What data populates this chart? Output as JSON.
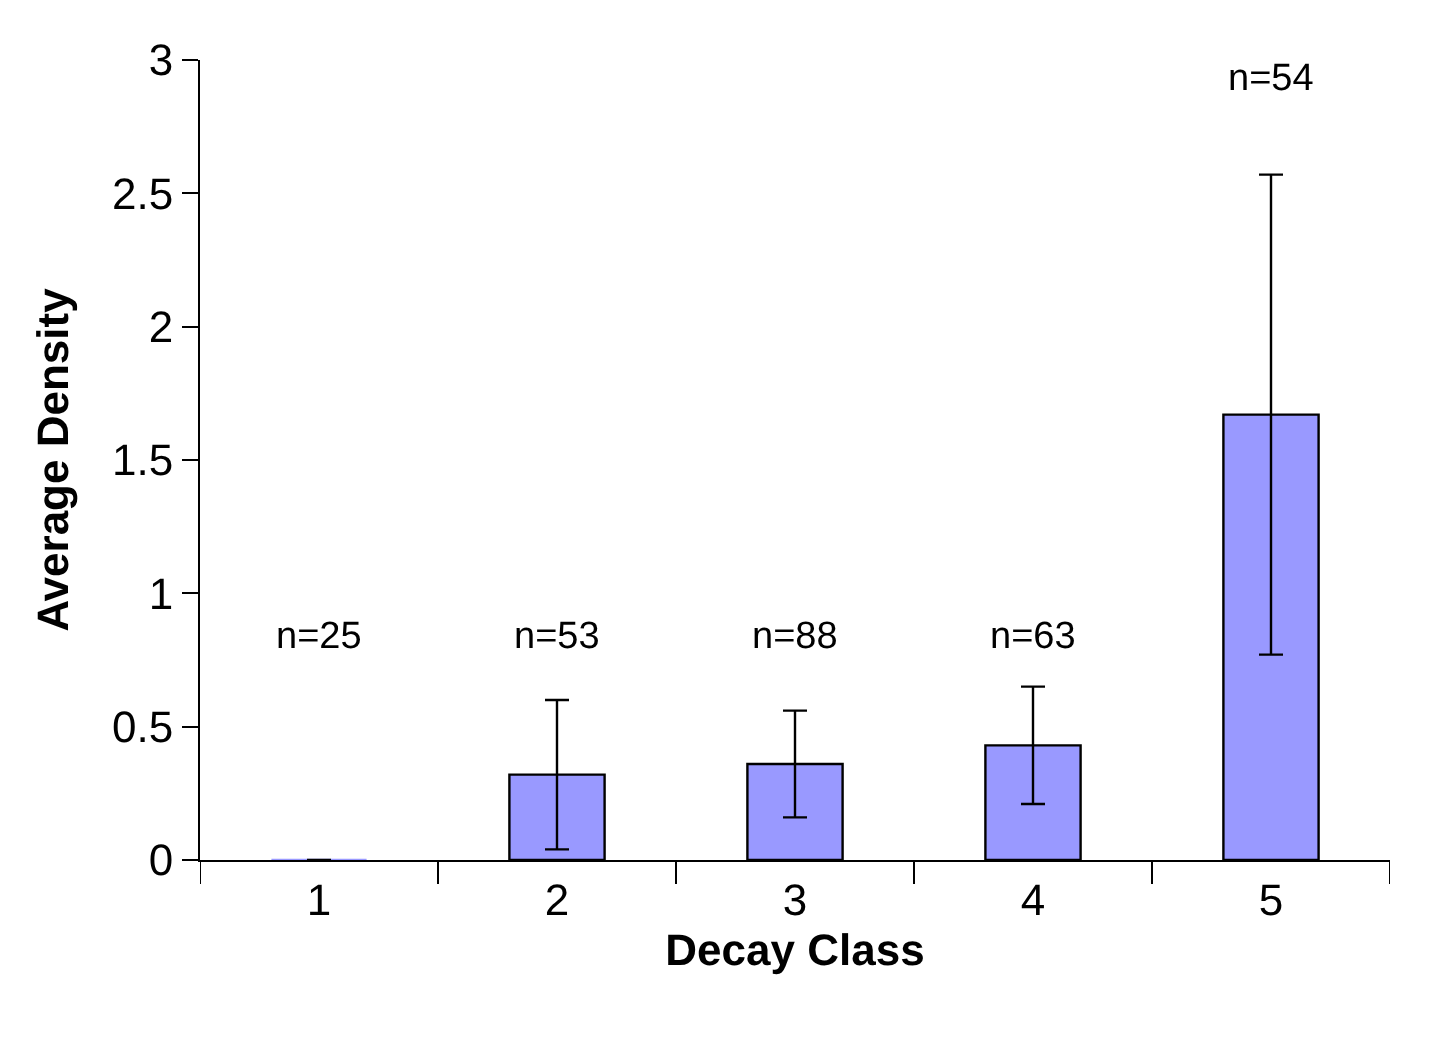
{
  "chart_data": {
    "type": "bar",
    "xlabel": "Decay Class",
    "ylabel": "Average Density",
    "categories": [
      "1",
      "2",
      "3",
      "4",
      "5"
    ],
    "values": [
      0,
      0.32,
      0.36,
      0.43,
      1.67
    ],
    "errors": [
      null,
      0.28,
      0.2,
      0.22,
      0.9
    ],
    "color": "#9999ff",
    "ylim": [
      0,
      3
    ],
    "yticks": [
      0,
      0.5,
      1,
      1.5,
      2,
      2.5,
      3
    ],
    "annotations": [
      "n=25",
      "n=53",
      "n=88",
      "n=63",
      "n=54"
    ]
  }
}
